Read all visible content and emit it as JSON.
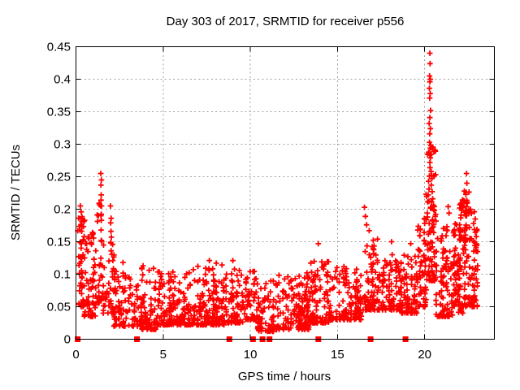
{
  "chart_data": {
    "type": "scatter",
    "title": "Day 303 of 2017, SRMTID for receiver p556",
    "xlabel": "GPS time / hours",
    "ylabel": "SRMTID / TECUs",
    "xlim": [
      0,
      24
    ],
    "ylim": [
      0,
      0.45
    ],
    "xtick_values": [
      0,
      5,
      10,
      15,
      20
    ],
    "xtick_labels": [
      "0",
      "5",
      "10",
      "15",
      "20"
    ],
    "ytick_values": [
      0,
      0.05,
      0.1,
      0.15,
      0.2,
      0.25,
      0.3,
      0.35,
      0.4,
      0.45
    ],
    "ytick_labels": [
      "0",
      "0.05",
      "0.1",
      "0.15",
      "0.2",
      "0.25",
      "0.3",
      "0.35",
      "0.4",
      "0.45"
    ],
    "grid": true,
    "legend": "none",
    "marker": {
      "shape": "plus",
      "size": 7,
      "color": "#ff0000"
    },
    "zero_marker": {
      "shape": "filled-square",
      "size": 7,
      "color": "#ff0000"
    },
    "zero_marker_x": [
      0.1,
      3.5,
      8.8,
      10.15,
      10.7,
      11.1,
      13.9,
      16.9,
      18.9
    ],
    "colors": {
      "points": "#ff0000",
      "grid": "#a0a0a0",
      "axis": "#000000",
      "background": "#ffffff"
    },
    "seed": 303,
    "cluster_format": "x0,x1 = hour range; n = point count; ymin,ymax = SRMTID range in TECUs; bias>1 concentrates points near ymin",
    "clusters": [
      {
        "x0": 0.1,
        "x1": 0.5,
        "n": 55,
        "ymin": 0.05,
        "ymax": 0.2,
        "bias": 1.5
      },
      {
        "x0": 0.5,
        "x1": 1.15,
        "n": 65,
        "ymin": 0.035,
        "ymax": 0.165,
        "bias": 2.0
      },
      {
        "x0": 1.15,
        "x1": 1.55,
        "n": 28,
        "ymin": 0.055,
        "ymax": 0.21,
        "bias": 1.8
      },
      {
        "x0": 1.55,
        "x1": 2.2,
        "n": 40,
        "ymin": 0.04,
        "ymax": 0.15,
        "bias": 2.0
      },
      {
        "x0": 2.2,
        "x1": 3.6,
        "n": 95,
        "ymin": 0.02,
        "ymax": 0.105,
        "bias": 2.2
      },
      {
        "x0": 3.6,
        "x1": 4.6,
        "n": 80,
        "ymin": 0.015,
        "ymax": 0.11,
        "bias": 2.4
      },
      {
        "x0": 4.6,
        "x1": 6.6,
        "n": 170,
        "ymin": 0.022,
        "ymax": 0.105,
        "bias": 2.3
      },
      {
        "x0": 6.6,
        "x1": 8.6,
        "n": 170,
        "ymin": 0.022,
        "ymax": 0.115,
        "bias": 2.3
      },
      {
        "x0": 8.6,
        "x1": 9.7,
        "n": 80,
        "ymin": 0.025,
        "ymax": 0.11,
        "bias": 2.2
      },
      {
        "x0": 9.7,
        "x1": 10.4,
        "n": 55,
        "ymin": 0.03,
        "ymax": 0.105,
        "bias": 2.0
      },
      {
        "x0": 10.4,
        "x1": 11.6,
        "n": 80,
        "ymin": 0.012,
        "ymax": 0.09,
        "bias": 2.0
      },
      {
        "x0": 11.6,
        "x1": 13.4,
        "n": 155,
        "ymin": 0.015,
        "ymax": 0.1,
        "bias": 2.2
      },
      {
        "x0": 13.4,
        "x1": 14.5,
        "n": 90,
        "ymin": 0.025,
        "ymax": 0.12,
        "bias": 2.4
      },
      {
        "x0": 14.5,
        "x1": 16.4,
        "n": 140,
        "ymin": 0.03,
        "ymax": 0.115,
        "bias": 2.2
      },
      {
        "x0": 16.4,
        "x1": 17.3,
        "n": 75,
        "ymin": 0.045,
        "ymax": 0.155,
        "bias": 2.2
      },
      {
        "x0": 17.3,
        "x1": 18.6,
        "n": 105,
        "ymin": 0.045,
        "ymax": 0.13,
        "bias": 2.0
      },
      {
        "x0": 18.6,
        "x1": 19.6,
        "n": 85,
        "ymin": 0.04,
        "ymax": 0.135,
        "bias": 2.0
      },
      {
        "x0": 19.6,
        "x1": 20.1,
        "n": 55,
        "ymin": 0.05,
        "ymax": 0.21,
        "bias": 2.2
      },
      {
        "x0": 20.1,
        "x1": 20.65,
        "n": 80,
        "ymin": 0.09,
        "ymax": 0.3,
        "bias": 2.0
      },
      {
        "x0": 20.65,
        "x1": 21.6,
        "n": 95,
        "ymin": 0.035,
        "ymax": 0.175,
        "bias": 2.0
      },
      {
        "x0": 21.6,
        "x1": 22.35,
        "n": 85,
        "ymin": 0.05,
        "ymax": 0.185,
        "bias": 1.6
      },
      {
        "x0": 22.0,
        "x1": 22.7,
        "n": 45,
        "ymin": 0.15,
        "ymax": 0.235,
        "bias": 1.2
      },
      {
        "x0": 22.35,
        "x1": 23.05,
        "n": 70,
        "ymin": 0.05,
        "ymax": 0.17,
        "bias": 1.7
      },
      {
        "x0": 21.9,
        "x1": 22.2,
        "n": 8,
        "ymin": 0.032,
        "ymax": 0.052,
        "bias": 1.0
      }
    ],
    "outliers": [
      [
        0.25,
        0.205
      ],
      [
        0.3,
        0.196
      ],
      [
        0.35,
        0.186
      ],
      [
        0.28,
        0.176
      ],
      [
        0.22,
        0.168
      ],
      [
        1.42,
        0.255
      ],
      [
        1.46,
        0.245
      ],
      [
        1.43,
        0.237
      ],
      [
        1.45,
        0.222
      ],
      [
        1.44,
        0.214
      ],
      [
        1.47,
        0.205
      ],
      [
        1.43,
        0.19
      ],
      [
        1.46,
        0.183
      ],
      [
        1.44,
        0.168
      ],
      [
        1.45,
        0.152
      ],
      [
        1.98,
        0.205
      ],
      [
        2.02,
        0.186
      ],
      [
        1.99,
        0.179
      ],
      [
        2.01,
        0.166
      ],
      [
        2.03,
        0.157
      ],
      [
        2.0,
        0.148
      ],
      [
        2.02,
        0.136
      ],
      [
        2.7,
        0.118
      ],
      [
        3.85,
        0.113
      ],
      [
        4.45,
        0.109
      ],
      [
        7.65,
        0.121
      ],
      [
        8.05,
        0.117
      ],
      [
        9.0,
        0.121
      ],
      [
        10.15,
        0.104
      ],
      [
        12.8,
        0.097
      ],
      [
        13.25,
        0.102
      ],
      [
        13.9,
        0.147
      ],
      [
        14.1,
        0.119
      ],
      [
        14.2,
        0.108
      ],
      [
        16.55,
        0.203
      ],
      [
        16.6,
        0.189
      ],
      [
        16.67,
        0.176
      ],
      [
        16.82,
        0.167
      ],
      [
        17.3,
        0.154
      ],
      [
        18.1,
        0.15
      ],
      [
        19.2,
        0.147
      ],
      [
        20.3,
        0.44
      ],
      [
        20.31,
        0.424
      ],
      [
        20.28,
        0.405
      ],
      [
        20.33,
        0.4
      ],
      [
        20.3,
        0.396
      ],
      [
        20.27,
        0.386
      ],
      [
        20.32,
        0.378
      ],
      [
        20.29,
        0.371
      ],
      [
        20.34,
        0.352
      ],
      [
        20.3,
        0.341
      ],
      [
        20.26,
        0.332
      ],
      [
        20.33,
        0.324
      ],
      [
        20.29,
        0.316
      ],
      [
        20.28,
        0.303
      ],
      [
        20.35,
        0.298
      ],
      [
        20.24,
        0.288
      ],
      [
        20.33,
        0.279
      ],
      [
        20.3,
        0.272
      ],
      [
        20.31,
        0.264
      ],
      [
        20.37,
        0.258
      ],
      [
        20.27,
        0.251
      ],
      [
        20.41,
        0.247
      ],
      [
        20.22,
        0.243
      ],
      [
        20.38,
        0.237
      ],
      [
        20.25,
        0.231
      ],
      [
        20.43,
        0.227
      ],
      [
        20.2,
        0.222
      ],
      [
        20.46,
        0.216
      ],
      [
        20.18,
        0.211
      ],
      [
        20.5,
        0.206
      ],
      [
        20.55,
        0.198
      ],
      [
        20.15,
        0.194
      ],
      [
        20.6,
        0.189
      ],
      [
        20.1,
        0.184
      ],
      [
        21.35,
        0.204
      ],
      [
        21.4,
        0.194
      ],
      [
        22.4,
        0.255
      ],
      [
        22.42,
        0.24
      ],
      [
        22.38,
        0.226
      ],
      [
        22.44,
        0.211
      ],
      [
        22.41,
        0.204
      ],
      [
        22.46,
        0.196
      ],
      [
        22.35,
        0.19
      ],
      [
        22.85,
        0.196
      ],
      [
        22.9,
        0.185
      ],
      [
        22.8,
        0.178
      ],
      [
        23.0,
        0.169
      ]
    ]
  }
}
